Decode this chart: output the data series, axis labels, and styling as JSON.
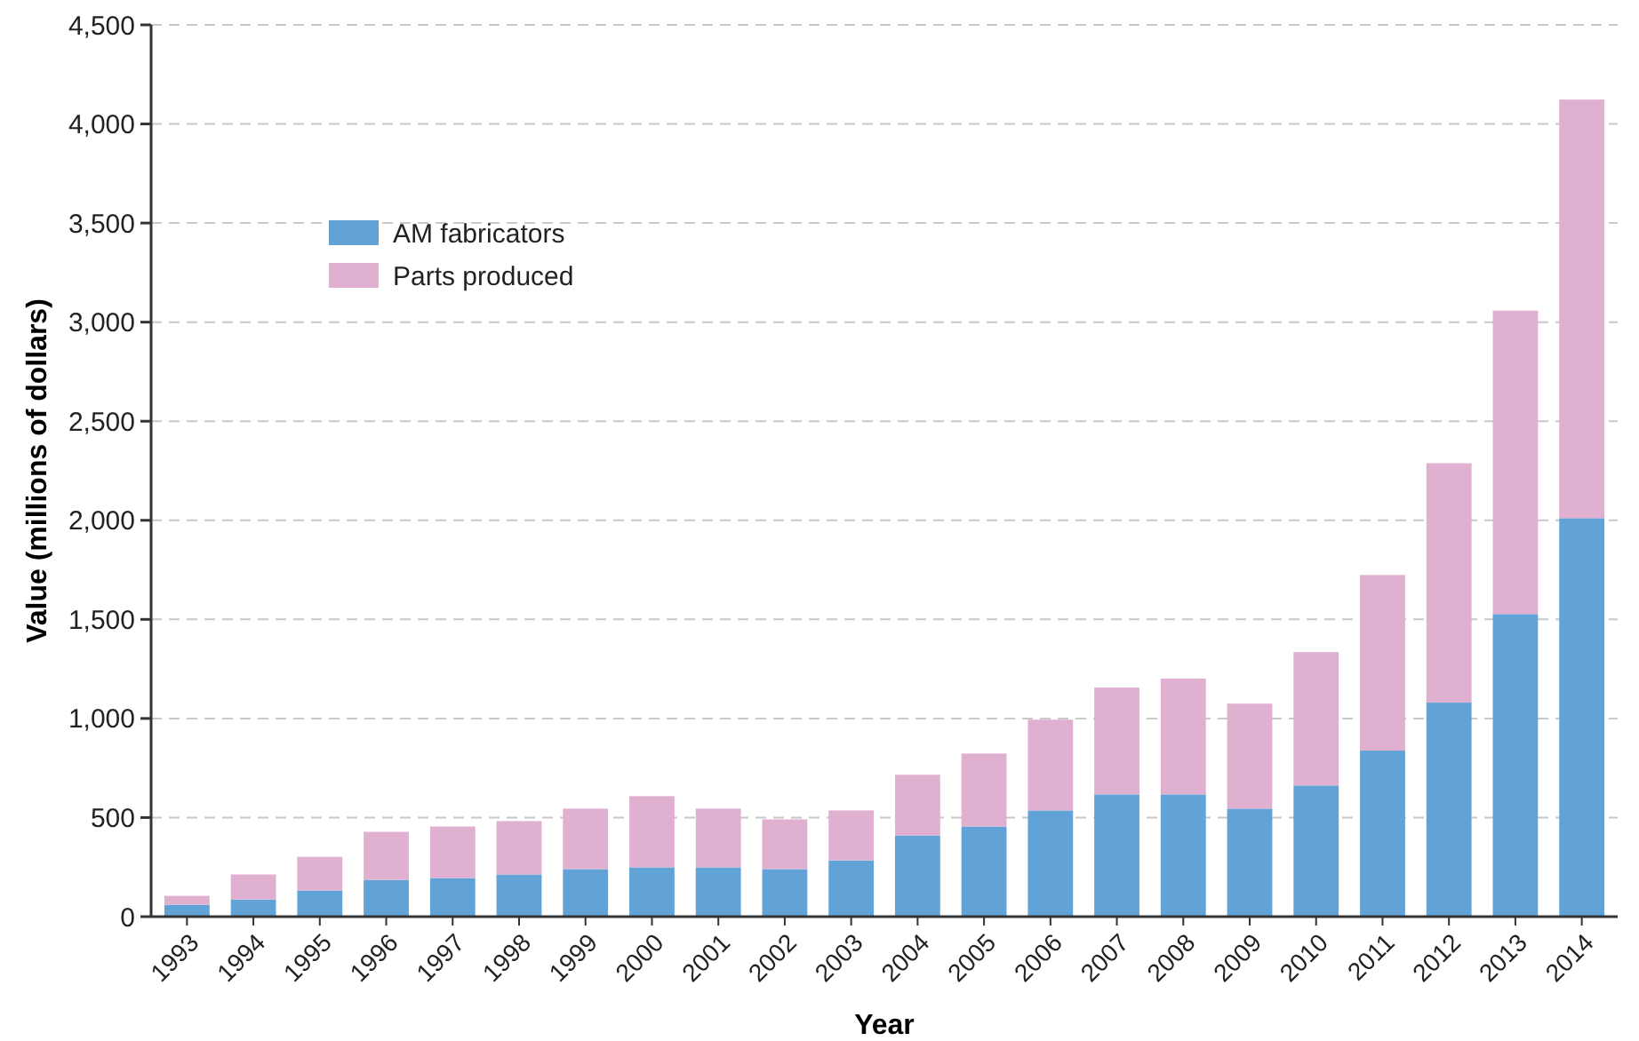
{
  "chart_data": {
    "type": "bar",
    "stacked": true,
    "xlabel": "Year",
    "ylabel": "Value (millions of dollars)",
    "categories": [
      "1993",
      "1994",
      "1995",
      "1996",
      "1997",
      "1998",
      "1999",
      "2000",
      "2001",
      "2002",
      "2003",
      "2004",
      "2005",
      "2006",
      "2007",
      "2008",
      "2009",
      "2010",
      "2011",
      "2012",
      "2013",
      "2014"
    ],
    "series": [
      {
        "name": "AM fabricators",
        "color": "#62a3d7",
        "values": [
          60,
          87,
          132,
          186,
          195,
          213,
          240,
          249,
          249,
          240,
          284,
          410,
          455,
          536,
          617,
          617,
          545,
          662,
          838,
          1080,
          1527,
          2011
        ]
      },
      {
        "name": "Parts produced",
        "color": "#e0b0d0",
        "values": [
          45,
          126,
          170,
          242,
          260,
          269,
          305,
          359,
          296,
          251,
          252,
          306,
          368,
          458,
          539,
          584,
          530,
          673,
          886,
          1208,
          1531,
          2112
        ]
      }
    ],
    "ylim": [
      0,
      4500
    ],
    "yticks": [
      {
        "value": 0,
        "label": "0"
      },
      {
        "value": 500,
        "label": "500"
      },
      {
        "value": 1000,
        "label": "1,000"
      },
      {
        "value": 1500,
        "label": "1,500"
      },
      {
        "value": 2000,
        "label": "2,000"
      },
      {
        "value": 2500,
        "label": "2,500"
      },
      {
        "value": 3000,
        "label": "3,000"
      },
      {
        "value": 3500,
        "label": "3,500"
      },
      {
        "value": 4000,
        "label": "4,000"
      },
      {
        "value": 4500,
        "label": "4,500"
      }
    ],
    "grid": "y",
    "legend": "top left"
  }
}
